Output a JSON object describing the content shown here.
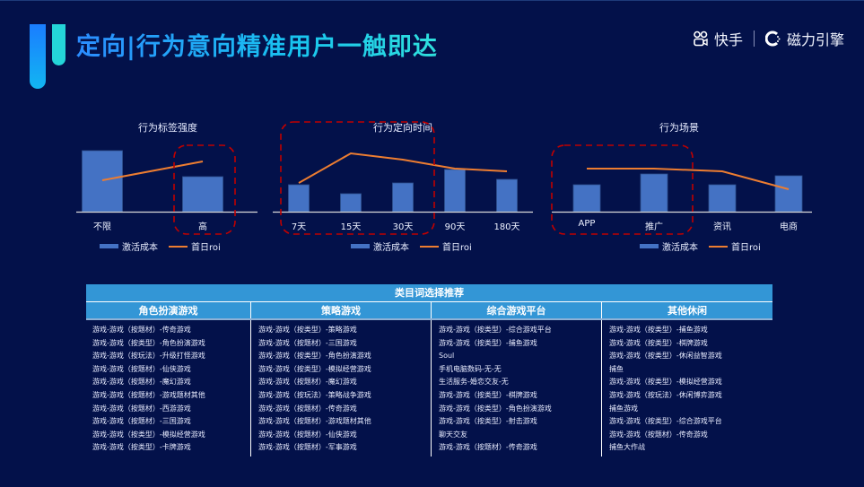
{
  "header": {
    "title": "定向|行为意向精准用户一触即达",
    "brand_kuaishou": "快手",
    "brand_engine": "磁力引擎"
  },
  "colors": {
    "background": "#03114a",
    "bar": "#4472c4",
    "line": "#ed7d31",
    "highlight_box": "#c00000",
    "table_header": "#3396d6"
  },
  "legend": {
    "bar_label": "激活成本",
    "line_label": "首日roi"
  },
  "chart_data": [
    {
      "type": "bar",
      "title": "行为标签强度",
      "categories": [
        "不限",
        "高"
      ],
      "series": [
        {
          "name": "激活成本",
          "type": "bar",
          "values": [
            68,
            39
          ]
        },
        {
          "name": "首日roi",
          "type": "line",
          "values": [
            35,
            56
          ]
        }
      ],
      "highlight": [
        "高"
      ],
      "ylim": [
        0,
        100
      ],
      "legend_position": "bottom"
    },
    {
      "type": "bar",
      "title": "行为定向时间",
      "categories": [
        "7天",
        "15天",
        "30天",
        "90天",
        "180天"
      ],
      "series": [
        {
          "name": "激活成本",
          "type": "bar",
          "values": [
            30,
            20,
            32,
            47,
            36
          ]
        },
        {
          "name": "首日roi",
          "type": "line",
          "values": [
            32,
            65,
            58,
            48,
            45
          ]
        }
      ],
      "highlight": [
        "7天",
        "15天",
        "30天"
      ],
      "ylim": [
        0,
        100
      ],
      "legend_position": "bottom"
    },
    {
      "type": "bar",
      "title": "行为场景",
      "categories": [
        "APP",
        "推广",
        "资讯",
        "电商"
      ],
      "series": [
        {
          "name": "激活成本",
          "type": "bar",
          "values": [
            30,
            42,
            30,
            40
          ]
        },
        {
          "name": "首日roi",
          "type": "line",
          "values": [
            48,
            48,
            45,
            25
          ]
        }
      ],
      "highlight": [
        "APP",
        "推广"
      ],
      "ylim": [
        0,
        100
      ],
      "legend_position": "bottom"
    }
  ],
  "table": {
    "title": "类目词选择推荐",
    "columns": [
      {
        "header": "角色扮演游戏",
        "items": [
          "游戏-游戏（按题材）-传奇游戏",
          "游戏-游戏（按类型）-角色扮演游戏",
          "游戏-游戏（按玩法）-升级打怪游戏",
          "游戏-游戏（按题材）-仙侠游戏",
          "游戏-游戏（按题材）-魔幻游戏",
          "游戏-游戏（按题材）-游戏题材其他",
          "游戏-游戏（按题材）-西游游戏",
          "游戏-游戏（按题材）-三国游戏",
          "游戏-游戏（按类型）-模拟经营游戏",
          "游戏-游戏（按类型）-卡牌游戏"
        ]
      },
      {
        "header": "策略游戏",
        "items": [
          "游戏-游戏（按类型）-策略游戏",
          "游戏-游戏（按题材）-三国游戏",
          "游戏-游戏（按类型）-角色扮演游戏",
          "游戏-游戏（按类型）-模拟经营游戏",
          "游戏-游戏（按题材）-魔幻游戏",
          "游戏-游戏（按玩法）-策略战争游戏",
          "游戏-游戏（按题材）-传奇游戏",
          "游戏-游戏（按题材）-游戏题材其他",
          "游戏-游戏（按题材）-仙侠游戏",
          "游戏-游戏（按题材）-军事游戏"
        ]
      },
      {
        "header": "综合游戏平台",
        "items": [
          "游戏-游戏（按类型）-综合游戏平台",
          "游戏-游戏（按类型）-捕鱼游戏",
          "Soul",
          "手机电脑数码-无-无",
          "生活服务-婚恋交友-无",
          "游戏-游戏（按类型）-棋牌游戏",
          "游戏-游戏（按类型）-角色扮演游戏",
          "游戏-游戏（按类型）-射击游戏",
          "聊天交友",
          "游戏-游戏（按题材）-传奇游戏"
        ]
      },
      {
        "header": "其他休闲",
        "items": [
          "游戏-游戏（按类型）-捕鱼游戏",
          "游戏-游戏（按类型）-棋牌游戏",
          "游戏-游戏（按类型）-休闲益智游戏",
          "捕鱼",
          "游戏-游戏（按类型）-模拟经营游戏",
          "游戏-游戏（按玩法）-休闲博弈游戏",
          "捕鱼游戏",
          "游戏-游戏（按类型）-综合游戏平台",
          "游戏-游戏（按题材）-传奇游戏",
          "捕鱼大作战"
        ]
      }
    ]
  }
}
